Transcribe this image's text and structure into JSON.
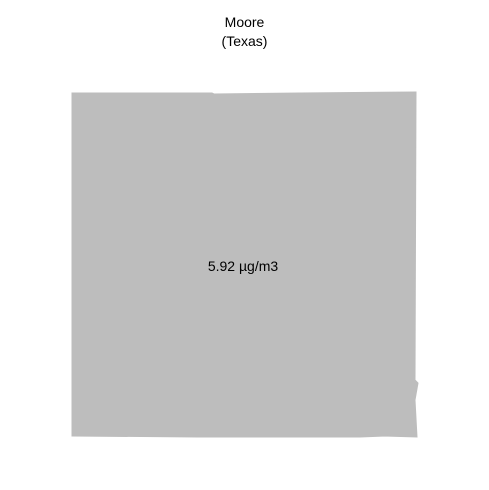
{
  "title": {
    "name": "Moore",
    "state": "(Texas)"
  },
  "map": {
    "region_label": "5.92 µg/m3",
    "fill_color": "#bdbdbd"
  }
}
